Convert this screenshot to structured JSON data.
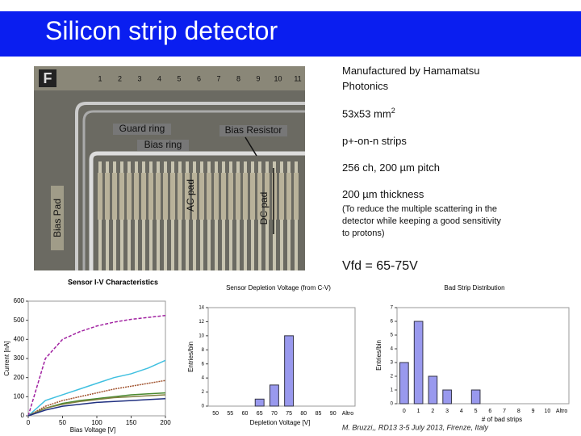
{
  "title": "Silicon strip detector",
  "photo": {
    "logo": "F",
    "ruler": [
      "1",
      "2",
      "3",
      "4",
      "5",
      "6",
      "7",
      "8",
      "9",
      "10",
      "11"
    ],
    "labels": {
      "guard_ring": "Guard ring",
      "bias_resistor": "Bias Resistor",
      "bias_ring": "Bias ring",
      "ac_pad": "AC pad",
      "dc_pad": "DC pad",
      "bias_pad": "Bias Pad"
    }
  },
  "specs": {
    "manufacturer": "Manufactured by Hamamatsu Photonics",
    "size": "53x53 mm",
    "size_sup": "2",
    "strips": "p+-on-n strips",
    "channels": "256 ch, 200 µm pitch",
    "thickness": "200 µm thickness",
    "note": "(To reduce the multiple scattering in the detector while keeping a good sensitivity to protons)",
    "vfd": "Vfd = 65-75V"
  },
  "credit": "M. Bruzzi,, RD13 3-5 July 2013, Firenze, Italy",
  "chart_data": [
    {
      "type": "line",
      "title": "Sensor I-V Characteristics",
      "xlabel": "Bias Voltage [V]",
      "ylabel": "Current [nA]",
      "x": [
        0,
        25,
        50,
        75,
        100,
        125,
        150,
        175,
        200
      ],
      "xlim": [
        0,
        200
      ],
      "xticks": [
        0,
        50,
        100,
        150,
        200
      ],
      "ylim": [
        0,
        600
      ],
      "yticks": [
        0,
        100,
        200,
        300,
        400,
        500,
        600
      ],
      "grid": false,
      "series": [
        {
          "color": "#a020a0",
          "values": [
            0,
            300,
            400,
            440,
            470,
            490,
            505,
            515,
            525
          ]
        },
        {
          "color": "#40c0e0",
          "values": [
            0,
            80,
            110,
            140,
            170,
            200,
            220,
            250,
            290
          ]
        },
        {
          "color": "#a0522d",
          "values": [
            0,
            50,
            80,
            100,
            120,
            140,
            155,
            170,
            185
          ]
        },
        {
          "color": "#4a8a30",
          "values": [
            0,
            40,
            65,
            80,
            90,
            100,
            110,
            115,
            120
          ]
        },
        {
          "color": "#808040",
          "values": [
            0,
            40,
            60,
            75,
            85,
            95,
            100,
            105,
            110
          ]
        },
        {
          "color": "#203080",
          "values": [
            0,
            30,
            50,
            60,
            70,
            75,
            80,
            85,
            90
          ]
        }
      ]
    },
    {
      "type": "bar",
      "title": "Sensor Depletion Voltage (from C-V)",
      "xlabel": "Depletion Voltage [V]",
      "ylabel": "Entries/bin",
      "categories": [
        "50",
        "55",
        "60",
        "65",
        "70",
        "75",
        "80",
        "85",
        "90",
        "Altro"
      ],
      "values": [
        0,
        0,
        0,
        1,
        3,
        10,
        0,
        0,
        0,
        0
      ],
      "color": "#9999ee",
      "ylim": [
        0,
        14
      ],
      "yticks": [
        0,
        2,
        4,
        6,
        8,
        10,
        12,
        14
      ],
      "grid": false
    },
    {
      "type": "bar",
      "title": "Bad Strip Distribution",
      "xlabel": "# of bad strips",
      "ylabel": "Entries/bin",
      "categories": [
        "0",
        "1",
        "2",
        "3",
        "4",
        "5",
        "6",
        "7",
        "8",
        "9",
        "10",
        "Altro"
      ],
      "values": [
        3,
        6,
        2,
        1,
        0,
        1,
        0,
        0,
        0,
        0,
        0,
        0
      ],
      "color": "#9999ee",
      "ylim": [
        0,
        7
      ],
      "yticks": [
        0,
        1,
        2,
        3,
        4,
        5,
        6,
        7
      ],
      "grid": false
    }
  ]
}
